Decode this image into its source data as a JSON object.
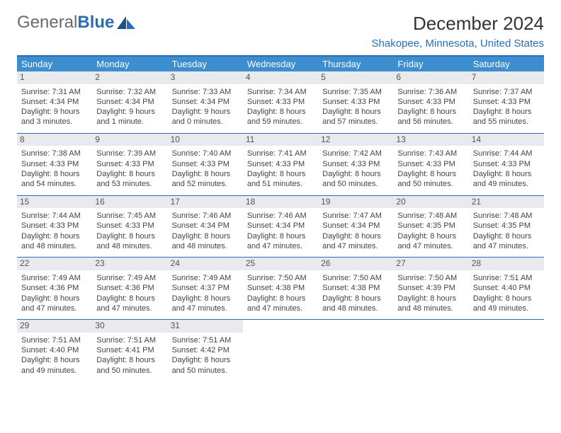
{
  "brand": {
    "word1": "General",
    "word2": "Blue"
  },
  "title": "December 2024",
  "location": "Shakopee, Minnesota, United States",
  "colors": {
    "header_bg": "#3d8ecf",
    "border": "#2a6fb5",
    "daynum_bg": "#e9eaed",
    "text": "#444444",
    "location_text": "#2a6fb5"
  },
  "day_names": [
    "Sunday",
    "Monday",
    "Tuesday",
    "Wednesday",
    "Thursday",
    "Friday",
    "Saturday"
  ],
  "weeks": [
    [
      {
        "n": "1",
        "sunrise": "Sunrise: 7:31 AM",
        "sunset": "Sunset: 4:34 PM",
        "day": "Daylight: 9 hours and 3 minutes."
      },
      {
        "n": "2",
        "sunrise": "Sunrise: 7:32 AM",
        "sunset": "Sunset: 4:34 PM",
        "day": "Daylight: 9 hours and 1 minute."
      },
      {
        "n": "3",
        "sunrise": "Sunrise: 7:33 AM",
        "sunset": "Sunset: 4:34 PM",
        "day": "Daylight: 9 hours and 0 minutes."
      },
      {
        "n": "4",
        "sunrise": "Sunrise: 7:34 AM",
        "sunset": "Sunset: 4:33 PM",
        "day": "Daylight: 8 hours and 59 minutes."
      },
      {
        "n": "5",
        "sunrise": "Sunrise: 7:35 AM",
        "sunset": "Sunset: 4:33 PM",
        "day": "Daylight: 8 hours and 57 minutes."
      },
      {
        "n": "6",
        "sunrise": "Sunrise: 7:36 AM",
        "sunset": "Sunset: 4:33 PM",
        "day": "Daylight: 8 hours and 56 minutes."
      },
      {
        "n": "7",
        "sunrise": "Sunrise: 7:37 AM",
        "sunset": "Sunset: 4:33 PM",
        "day": "Daylight: 8 hours and 55 minutes."
      }
    ],
    [
      {
        "n": "8",
        "sunrise": "Sunrise: 7:38 AM",
        "sunset": "Sunset: 4:33 PM",
        "day": "Daylight: 8 hours and 54 minutes."
      },
      {
        "n": "9",
        "sunrise": "Sunrise: 7:39 AM",
        "sunset": "Sunset: 4:33 PM",
        "day": "Daylight: 8 hours and 53 minutes."
      },
      {
        "n": "10",
        "sunrise": "Sunrise: 7:40 AM",
        "sunset": "Sunset: 4:33 PM",
        "day": "Daylight: 8 hours and 52 minutes."
      },
      {
        "n": "11",
        "sunrise": "Sunrise: 7:41 AM",
        "sunset": "Sunset: 4:33 PM",
        "day": "Daylight: 8 hours and 51 minutes."
      },
      {
        "n": "12",
        "sunrise": "Sunrise: 7:42 AM",
        "sunset": "Sunset: 4:33 PM",
        "day": "Daylight: 8 hours and 50 minutes."
      },
      {
        "n": "13",
        "sunrise": "Sunrise: 7:43 AM",
        "sunset": "Sunset: 4:33 PM",
        "day": "Daylight: 8 hours and 50 minutes."
      },
      {
        "n": "14",
        "sunrise": "Sunrise: 7:44 AM",
        "sunset": "Sunset: 4:33 PM",
        "day": "Daylight: 8 hours and 49 minutes."
      }
    ],
    [
      {
        "n": "15",
        "sunrise": "Sunrise: 7:44 AM",
        "sunset": "Sunset: 4:33 PM",
        "day": "Daylight: 8 hours and 48 minutes."
      },
      {
        "n": "16",
        "sunrise": "Sunrise: 7:45 AM",
        "sunset": "Sunset: 4:33 PM",
        "day": "Daylight: 8 hours and 48 minutes."
      },
      {
        "n": "17",
        "sunrise": "Sunrise: 7:46 AM",
        "sunset": "Sunset: 4:34 PM",
        "day": "Daylight: 8 hours and 48 minutes."
      },
      {
        "n": "18",
        "sunrise": "Sunrise: 7:46 AM",
        "sunset": "Sunset: 4:34 PM",
        "day": "Daylight: 8 hours and 47 minutes."
      },
      {
        "n": "19",
        "sunrise": "Sunrise: 7:47 AM",
        "sunset": "Sunset: 4:34 PM",
        "day": "Daylight: 8 hours and 47 minutes."
      },
      {
        "n": "20",
        "sunrise": "Sunrise: 7:48 AM",
        "sunset": "Sunset: 4:35 PM",
        "day": "Daylight: 8 hours and 47 minutes."
      },
      {
        "n": "21",
        "sunrise": "Sunrise: 7:48 AM",
        "sunset": "Sunset: 4:35 PM",
        "day": "Daylight: 8 hours and 47 minutes."
      }
    ],
    [
      {
        "n": "22",
        "sunrise": "Sunrise: 7:49 AM",
        "sunset": "Sunset: 4:36 PM",
        "day": "Daylight: 8 hours and 47 minutes."
      },
      {
        "n": "23",
        "sunrise": "Sunrise: 7:49 AM",
        "sunset": "Sunset: 4:36 PM",
        "day": "Daylight: 8 hours and 47 minutes."
      },
      {
        "n": "24",
        "sunrise": "Sunrise: 7:49 AM",
        "sunset": "Sunset: 4:37 PM",
        "day": "Daylight: 8 hours and 47 minutes."
      },
      {
        "n": "25",
        "sunrise": "Sunrise: 7:50 AM",
        "sunset": "Sunset: 4:38 PM",
        "day": "Daylight: 8 hours and 47 minutes."
      },
      {
        "n": "26",
        "sunrise": "Sunrise: 7:50 AM",
        "sunset": "Sunset: 4:38 PM",
        "day": "Daylight: 8 hours and 48 minutes."
      },
      {
        "n": "27",
        "sunrise": "Sunrise: 7:50 AM",
        "sunset": "Sunset: 4:39 PM",
        "day": "Daylight: 8 hours and 48 minutes."
      },
      {
        "n": "28",
        "sunrise": "Sunrise: 7:51 AM",
        "sunset": "Sunset: 4:40 PM",
        "day": "Daylight: 8 hours and 49 minutes."
      }
    ],
    [
      {
        "n": "29",
        "sunrise": "Sunrise: 7:51 AM",
        "sunset": "Sunset: 4:40 PM",
        "day": "Daylight: 8 hours and 49 minutes."
      },
      {
        "n": "30",
        "sunrise": "Sunrise: 7:51 AM",
        "sunset": "Sunset: 4:41 PM",
        "day": "Daylight: 8 hours and 50 minutes."
      },
      {
        "n": "31",
        "sunrise": "Sunrise: 7:51 AM",
        "sunset": "Sunset: 4:42 PM",
        "day": "Daylight: 8 hours and 50 minutes."
      },
      null,
      null,
      null,
      null
    ]
  ]
}
